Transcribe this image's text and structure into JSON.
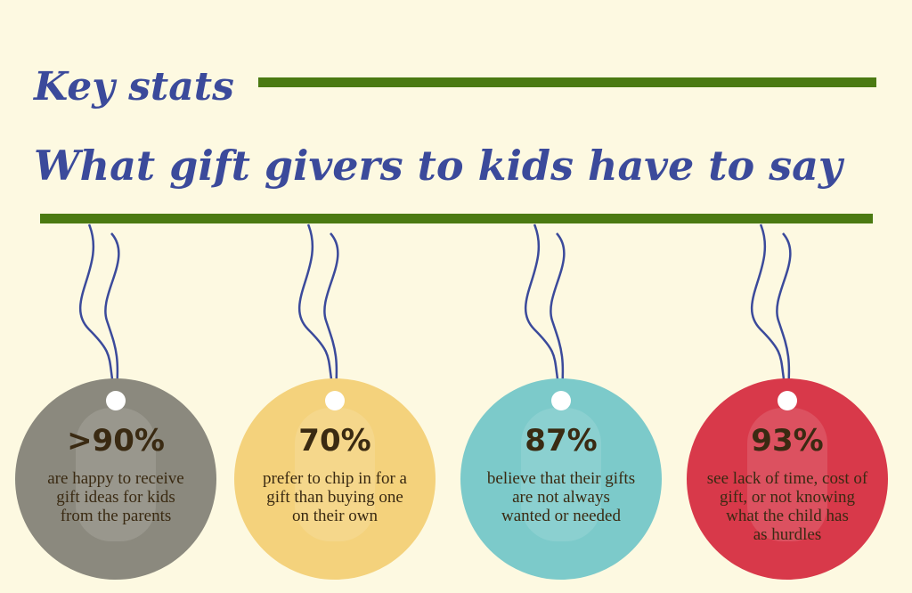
{
  "header": {
    "title": "Key stats",
    "subtitle": "What gift givers to kids have to say"
  },
  "stats": [
    {
      "value": ">90%",
      "color": "#8b897e",
      "lines": [
        "are happy to receive",
        "gift ideas for kids",
        "from the parents"
      ]
    },
    {
      "value": "70%",
      "color": "#f4d27c",
      "lines": [
        "prefer to chip in for a",
        "gift than buying one",
        "on their own"
      ]
    },
    {
      "value": "87%",
      "color": "#7ccaca",
      "lines": [
        "believe that their gifts",
        "are not always",
        "wanted or needed"
      ]
    },
    {
      "value": "93%",
      "color": "#d8394a",
      "lines": [
        "see lack of time, cost of",
        "gift, or not knowing",
        "what the child has",
        "as hurdles"
      ]
    }
  ]
}
